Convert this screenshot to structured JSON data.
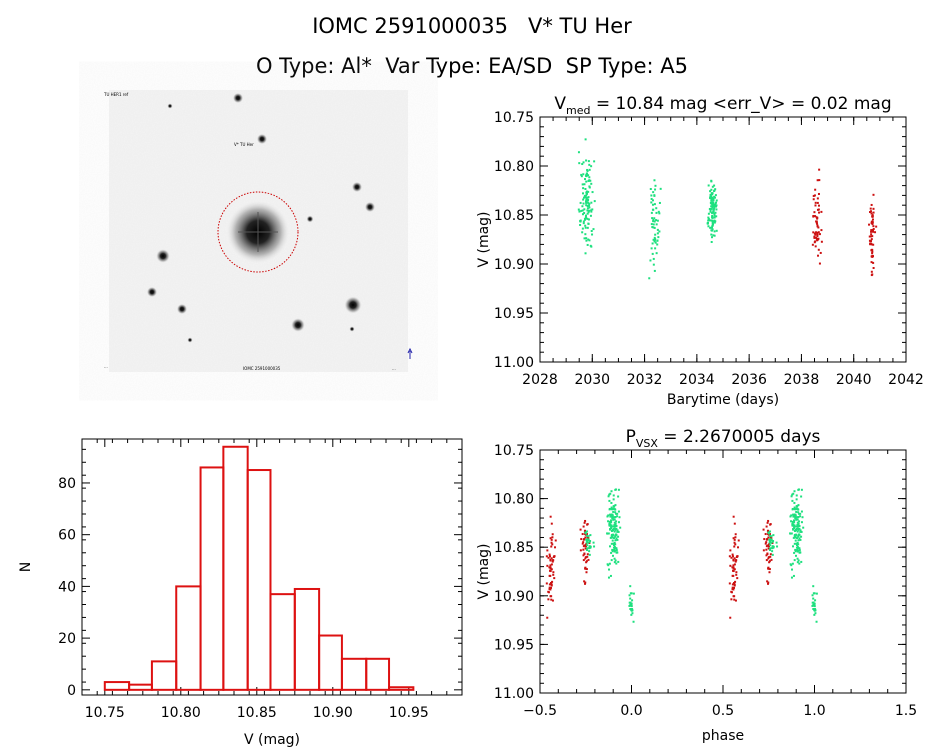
{
  "header": {
    "title": "IOMC 2591000035   V* TU Her",
    "subtitle": "O Type: Al*  Var Type: EA/SD  SP Type: A5"
  },
  "colors": {
    "series_early": "#1ee07f",
    "series_late": "#cc1111",
    "histogram": "#dd1111",
    "axes": "#000000"
  },
  "image_panel": {
    "corner_labels": [
      "TU HER1 ref",
      "V* TU Her",
      "IOMC 2591000035",
      "...",
      "..."
    ]
  },
  "chart_data": [
    {
      "id": "lightcurve",
      "type": "scatter",
      "title_main": "V",
      "title_sub": "med",
      "title_rest": " = 10.84 mag <err_V> = 0.02 mag",
      "xlabel": "Barytime (days)",
      "ylabel": "V (mag)",
      "xlim": [
        2028,
        2042
      ],
      "ylim": [
        11.0,
        10.75
      ],
      "xticks": [
        2028,
        2030,
        2032,
        2034,
        2036,
        2038,
        2040,
        2042
      ],
      "yticks": [
        "10.75",
        "10.80",
        "10.85",
        "10.90",
        "10.95",
        "11.00"
      ],
      "series": [
        {
          "color": "#1ee07f",
          "clusters": [
            {
              "x": 2029.8,
              "spread": 0.45,
              "n": 120,
              "ymin": 10.75,
              "ymax": 10.92,
              "ycenter": 10.835
            },
            {
              "x": 2032.4,
              "spread": 0.35,
              "n": 60,
              "ymin": 10.79,
              "ymax": 10.96,
              "ycenter": 10.86
            },
            {
              "x": 2034.6,
              "spread": 0.3,
              "n": 110,
              "ymin": 10.79,
              "ymax": 10.9,
              "ycenter": 10.845
            }
          ]
        },
        {
          "color": "#cc1111",
          "clusters": [
            {
              "x": 2038.6,
              "spread": 0.35,
              "n": 60,
              "ymin": 10.8,
              "ymax": 10.94,
              "ycenter": 10.86
            },
            {
              "x": 2040.7,
              "spread": 0.2,
              "n": 60,
              "ymin": 10.79,
              "ymax": 10.94,
              "ycenter": 10.87
            }
          ]
        }
      ]
    },
    {
      "id": "histogram",
      "type": "bar",
      "xlabel": "V (mag)",
      "ylabel": "N",
      "xlim": [
        10.735,
        10.985
      ],
      "ylim": [
        -2,
        97
      ],
      "xticks": [
        "10.75",
        "10.80",
        "10.85",
        "10.90",
        "10.95"
      ],
      "yticks": [
        "0",
        "20",
        "40",
        "60",
        "80"
      ],
      "bin_edges": [
        10.75,
        10.766,
        10.781,
        10.797,
        10.813,
        10.828,
        10.844,
        10.859,
        10.875,
        10.891,
        10.906,
        10.922,
        10.937,
        10.953,
        10.969
      ],
      "counts": [
        3,
        2,
        11,
        40,
        86,
        94,
        85,
        37,
        39,
        21,
        12,
        12,
        1,
        0
      ]
    },
    {
      "id": "phased",
      "type": "scatter",
      "title_main": "P",
      "title_sub": "VSX",
      "title_rest": " = 2.2670005 days",
      "xlabel": "phase",
      "ylabel": "V (mag)",
      "xlim": [
        -0.5,
        1.5
      ],
      "ylim": [
        11.0,
        10.75
      ],
      "xticks": [
        "−0.5",
        "0.0",
        "0.5",
        "1.0",
        "1.5"
      ],
      "yticks": [
        "10.75",
        "10.80",
        "10.85",
        "10.90",
        "10.95",
        "11.00"
      ],
      "series": [
        {
          "color": "#cc1111",
          "clusters": [
            {
              "x": -0.44,
              "spread": 0.05,
              "n": 60,
              "ymin": 10.8,
              "ymax": 10.94,
              "ycenter": 10.87
            },
            {
              "x": -0.25,
              "spread": 0.05,
              "n": 50,
              "ymin": 10.8,
              "ymax": 10.93,
              "ycenter": 10.85
            }
          ]
        },
        {
          "color": "#1ee07f",
          "clusters": [
            {
              "x": -0.23,
              "spread": 0.04,
              "n": 30,
              "ymin": 10.82,
              "ymax": 10.87,
              "ycenter": 10.845
            },
            {
              "x": -0.1,
              "spread": 0.06,
              "n": 140,
              "ymin": 10.75,
              "ymax": 10.9,
              "ycenter": 10.835
            },
            {
              "x": 0.0,
              "spread": 0.02,
              "n": 25,
              "ymin": 10.88,
              "ymax": 10.96,
              "ycenter": 10.91
            }
          ]
        }
      ],
      "repeat_offset": 1.0
    }
  ]
}
